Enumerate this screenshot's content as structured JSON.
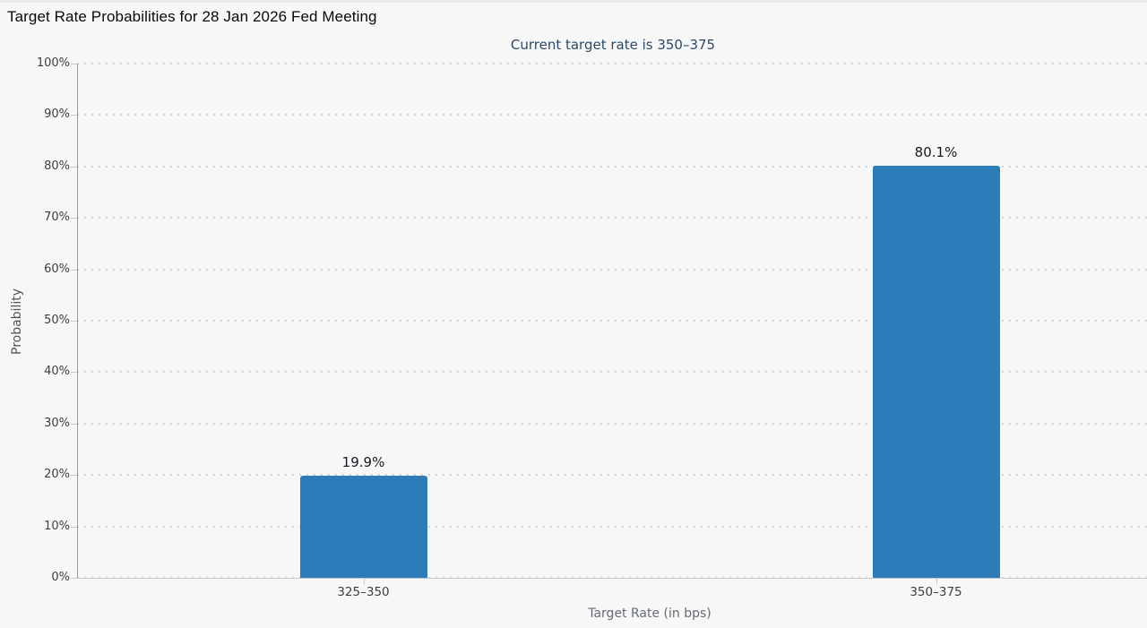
{
  "chart_data": {
    "type": "bar",
    "title": "Target Rate Probabilities for 28 Jan 2026 Fed Meeting",
    "subtitle": "Current target rate is 350–375",
    "categories": [
      "325–350",
      "350–375"
    ],
    "values": [
      19.9,
      80.1
    ],
    "data_labels": [
      "19.9%",
      "80.1%"
    ],
    "xlabel": "Target Rate (in bps)",
    "ylabel": "Probability",
    "ylim": [
      0,
      100
    ],
    "ytick_step": 10,
    "ytick_labels": [
      "0%",
      "10%",
      "20%",
      "30%",
      "40%",
      "50%",
      "60%",
      "70%",
      "80%",
      "90%",
      "100%"
    ],
    "grid": "horizontal-dotted",
    "legend_position": "none"
  },
  "colors": {
    "background": "#f7f7f7",
    "bar": "#2b7cb8",
    "title": "#0a0a0a",
    "subtitle": "#2c4a68",
    "y_axis_line": "#9b9b9b",
    "x_axis_line": "#c9c9c9",
    "gridline": "#d5d5d5",
    "tick_label": "#3e3e3e",
    "axis_title": "#666c74",
    "data_label": "#16191f"
  }
}
